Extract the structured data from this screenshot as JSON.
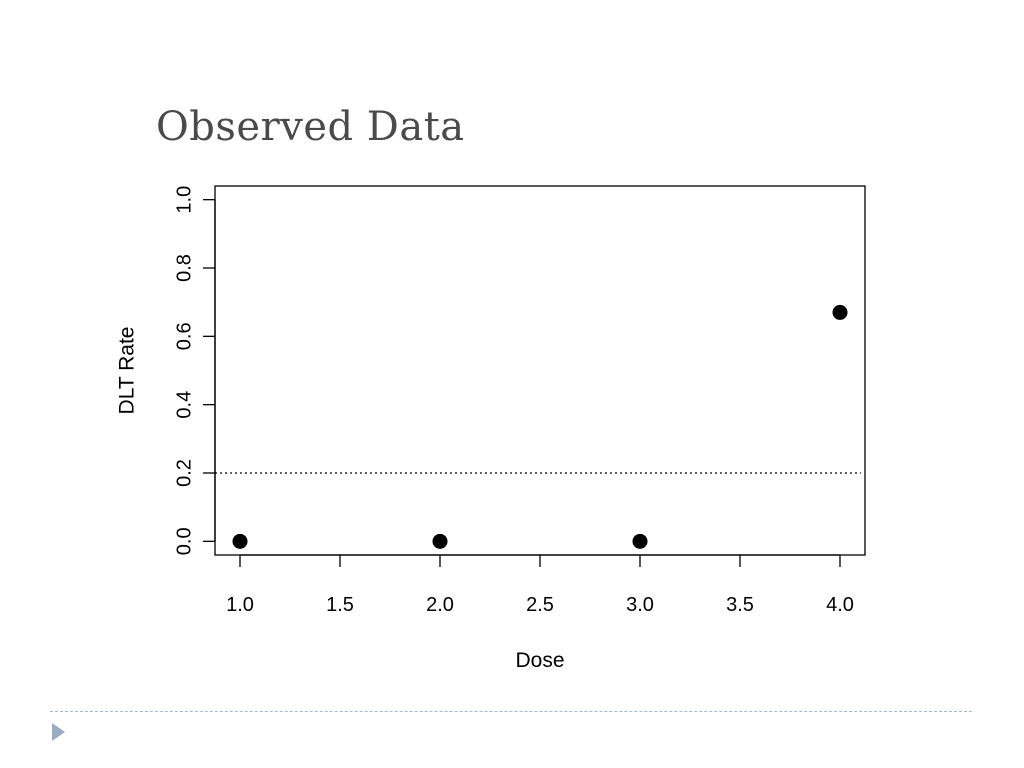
{
  "slide": {
    "title": "Observed Data",
    "footer_icon": "triangle-bullet-icon"
  },
  "chart_data": {
    "type": "scatter",
    "title": "",
    "xlabel": "Dose",
    "ylabel": "DLT Rate",
    "xlim": [
      0.875,
      4.125
    ],
    "ylim": [
      -0.04,
      1.04
    ],
    "xticks": [
      1.0,
      1.5,
      2.0,
      2.5,
      3.0,
      3.5,
      4.0
    ],
    "xtick_labels": [
      "1.0",
      "1.5",
      "2.0",
      "2.5",
      "3.0",
      "3.5",
      "4.0"
    ],
    "yticks": [
      0.0,
      0.2,
      0.4,
      0.6,
      0.8,
      1.0
    ],
    "ytick_labels": [
      "0.0",
      "0.2",
      "0.4",
      "0.6",
      "0.8",
      "1.0"
    ],
    "series": [
      {
        "x": [
          1,
          2,
          3,
          4
        ],
        "y": [
          0.0,
          0.0,
          0.0,
          0.67
        ]
      }
    ],
    "reference_line": {
      "orientation": "horizontal",
      "y": 0.2,
      "style": "dotted"
    },
    "grid": false,
    "point_color": "#000000"
  }
}
